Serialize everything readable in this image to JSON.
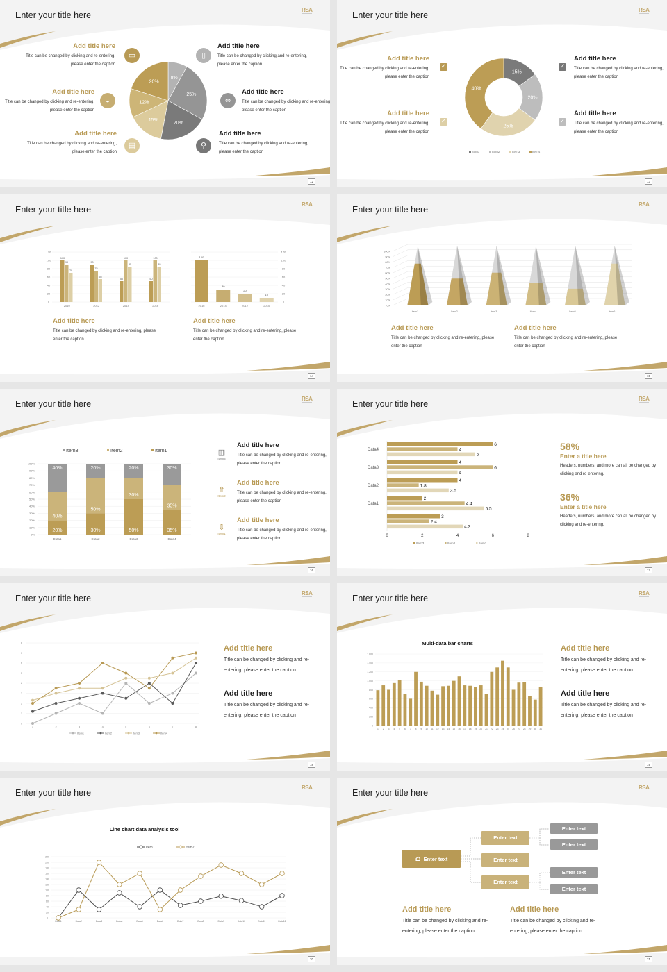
{
  "slides": [
    {
      "number": "12",
      "title": "Enter your title here",
      "items": [
        {
          "title": "Add title here",
          "caption": "Title can be changed by clicking and re-entering, please enter the caption",
          "icon": "monitor-icon"
        },
        {
          "title": "Add title here",
          "caption": "Title can be changed by clicking and re-entering, please enter the caption",
          "icon": "car-icon"
        },
        {
          "title": "Add title here",
          "caption": "Title can be changed by clicking and re-entering, please enter the caption",
          "icon": "book-icon"
        },
        {
          "title": "Add title here",
          "caption": "Title can be changed by clicking and re-entering, please enter the caption",
          "icon": "phone-icon"
        },
        {
          "title": "Add title here",
          "caption": "Title can be changed by clicking and re-entering, please enter the caption",
          "icon": "binoculars-icon"
        },
        {
          "title": "Add title here",
          "caption": "Title can be changed by clicking and re-entering, please enter the caption",
          "icon": "bicycle-icon"
        }
      ]
    },
    {
      "number": "13",
      "title": "Enter your title here",
      "items": [
        {
          "title": "Add title here",
          "caption": "Title can be changed by clicking and re-entering, please enter the caption"
        },
        {
          "title": "Add title here",
          "caption": "Title can be changed by clicking and re-entering, please enter the caption"
        },
        {
          "title": "Add title here",
          "caption": "Title can be changed by clicking and re-entering, please enter the caption"
        },
        {
          "title": "Add title here",
          "caption": "Title can be changed by clicking and re-entering, please enter the caption"
        }
      ],
      "check_glyph": "✓"
    },
    {
      "number": "14",
      "title": "Enter your title here",
      "items": [
        {
          "title": "Add title here",
          "caption": "Title can be changed by clicking and re-entering, please enter the caption"
        },
        {
          "title": "Add title here",
          "caption": "Title can be changed by clicking and re-entering, please enter the caption"
        }
      ]
    },
    {
      "number": "15",
      "title": "Enter your title here",
      "items": [
        {
          "title": "Add title here",
          "caption": "Title can be changed by clicking and re-entering, please enter the caption"
        },
        {
          "title": "Add title here",
          "caption": "Title can be changed by clicking and re-entering, please enter the caption"
        }
      ]
    },
    {
      "number": "16",
      "title": "Enter your title here",
      "items": [
        {
          "title": "Add title here",
          "caption": "Title can be changed by clicking and re-entering, please enter the caption",
          "icon_label": "Item3",
          "glyph": "▥"
        },
        {
          "title": "Add title here",
          "caption": "Title can be changed by clicking and re-entering, please enter the caption",
          "icon_label": "Item2",
          "glyph": "⇧"
        },
        {
          "title": "Add title here",
          "caption": "Title can be changed by clicking and re-entering, please enter the caption",
          "icon_label": "Item1",
          "glyph": "⇩"
        }
      ]
    },
    {
      "number": "17",
      "title": "Enter your title here",
      "stats": [
        {
          "value": "58%",
          "title": "Enter a title here",
          "caption": "Headers, numbers, and more can all be changed by clicking and re-entering."
        },
        {
          "value": "36%",
          "title": "Enter a title here",
          "caption": "Headers, numbers, and more can all be changed by clicking and re-entering."
        }
      ]
    },
    {
      "number": "18",
      "title": "Enter your title here",
      "items": [
        {
          "title": "Add title here",
          "caption": "Title can be changed by clicking and re-entering, please enter the caption"
        },
        {
          "title": "Add title here",
          "caption": "Title can be changed by clicking and re-entering, please enter the caption"
        }
      ]
    },
    {
      "number": "19",
      "title": "Enter your title here",
      "items": [
        {
          "title": "Add title here",
          "caption": "Title can be changed by clicking and re-entering, please enter the caption"
        },
        {
          "title": "Add title here",
          "caption": "Title can be changed by clicking and re-entering, please enter the caption"
        }
      ]
    },
    {
      "number": "20",
      "title": "Enter your title here"
    },
    {
      "number": "21",
      "title": "Enter your title here",
      "tree": {
        "root": "Enter text",
        "root_glyph": "⌂",
        "mid": [
          "Enter text",
          "Enter text",
          "Enter text"
        ],
        "leaves": [
          "Enter text",
          "Enter text",
          "Enter text",
          "Enter text"
        ]
      },
      "items": [
        {
          "title": "Add title here",
          "caption": "Title can be changed by clicking and re-entering, please enter the caption"
        },
        {
          "title": "Add title here",
          "caption": "Title can be changed by clicking and re-entering, please enter the caption"
        }
      ]
    }
  ],
  "logo_text": "RSA",
  "colors": {
    "gold": "#b89a55",
    "gold_mid": "#cbb47a",
    "gold_light": "#ddcfa6",
    "gray_dark": "#7b7b7b",
    "gray": "#969696",
    "gray_light": "#b9b9b9"
  },
  "chart_data": [
    {
      "type": "pie",
      "labels": [
        "8%",
        "25%",
        "20%",
        "15%",
        "12%",
        "20%"
      ],
      "values": [
        8,
        25,
        20,
        15,
        12,
        20
      ],
      "colors": [
        "#b3b3b3",
        "#959595",
        "#7a7a7a",
        "#dccb9c",
        "#cdb577",
        "#bc9d55"
      ]
    },
    {
      "type": "pie",
      "donut": true,
      "legend": [
        "Item1",
        "Item2",
        "Item3",
        "Item4"
      ],
      "values": [
        15,
        20,
        25,
        40
      ],
      "labels": [
        "15%",
        "20%",
        "25%",
        "40%"
      ],
      "colors": [
        "#7a7a7a",
        "#bdbdbd",
        "#e0d3ae",
        "#bc9d55"
      ],
      "legend_position": "bottom"
    },
    {
      "type": "bar",
      "categories": [
        "2010",
        "2012",
        "2014",
        "2016"
      ],
      "series": [
        {
          "values": [
            100,
            90,
            50,
            50
          ]
        },
        {
          "values": [
            90,
            75,
            100,
            100
          ]
        },
        {
          "values": [
            70,
            55,
            85,
            85
          ]
        }
      ],
      "ylim": [
        0,
        120
      ],
      "yticks": [
        0,
        20,
        40,
        60,
        80,
        100,
        120
      ],
      "colors": [
        "#bc9d55",
        "#cbb47a",
        "#ddcfa6"
      ]
    },
    {
      "type": "bar",
      "categories": [
        "2016",
        "2014",
        "2012",
        "2010"
      ],
      "values": [
        100,
        30,
        20,
        10
      ],
      "ylim": [
        0,
        120
      ],
      "yticks": [
        0,
        20,
        40,
        60,
        80,
        100,
        120
      ],
      "axis": "right",
      "colors": [
        "#bc9d55",
        "#c6ad71",
        "#d3c08f",
        "#e0d3ae"
      ]
    },
    {
      "type": "bar",
      "style": "3d-pyramid",
      "categories": [
        "Item1",
        "Item2",
        "Item3",
        "Item4",
        "Item5",
        "Item6"
      ],
      "values": [
        70,
        45,
        55,
        38,
        28,
        70
      ],
      "ylim": [
        0,
        100
      ],
      "yticks": [
        "0%",
        "10%",
        "20%",
        "30%",
        "40%",
        "50%",
        "60%",
        "70%",
        "80%",
        "90%",
        "100%"
      ]
    },
    {
      "type": "bar",
      "stacked": true,
      "categories": [
        "Data1",
        "Data2",
        "Data3",
        "Data4"
      ],
      "series": [
        {
          "name": "Item1",
          "values": [
            20,
            30,
            50,
            35
          ],
          "labels": [
            "20%",
            "30%",
            "50%",
            "35%"
          ]
        },
        {
          "name": "Item2",
          "values": [
            40,
            50,
            30,
            35
          ],
          "labels": [
            "40%",
            "50%",
            "30%",
            "35%"
          ]
        },
        {
          "name": "Item3",
          "values": [
            40,
            20,
            20,
            30
          ],
          "labels": [
            "40%",
            "20%",
            "20%",
            "30%"
          ]
        }
      ],
      "legend_order": [
        "Item3",
        "Item2",
        "Item1"
      ],
      "yticks": [
        "0%",
        "10%",
        "20%",
        "30%",
        "40%",
        "50%",
        "60%",
        "70%",
        "80%",
        "90%",
        "100%"
      ],
      "colors": [
        "#bc9d55",
        "#cbb47a",
        "#9a9a9a"
      ],
      "legend_position": "top"
    },
    {
      "type": "bar",
      "orientation": "horizontal",
      "categories": [
        "",
        "Data1",
        "Data2",
        "Data3",
        "Data4"
      ],
      "series": [
        {
          "name": "Item3",
          "values": [
            3,
            2,
            4,
            4,
            6
          ]
        },
        {
          "name": "Item2",
          "values": [
            2.4,
            4.4,
            1.8,
            6,
            4
          ]
        },
        {
          "name": "Item1",
          "values": [
            4.3,
            5.5,
            3.5,
            4,
            5
          ]
        }
      ],
      "xlim": [
        0,
        8
      ],
      "xticks": [
        0,
        2,
        4,
        6,
        8
      ],
      "colors": [
        "#bc9d55",
        "#cbb47a",
        "#e2d7b8"
      ],
      "legend_position": "bottom"
    },
    {
      "type": "line",
      "x": [
        "1",
        "2",
        "3",
        "4",
        "5",
        "6",
        "7",
        "8"
      ],
      "series": [
        {
          "name": "Item1",
          "values": [
            0,
            1,
            2,
            1,
            4,
            2,
            3,
            5
          ]
        },
        {
          "name": "Item2",
          "values": [
            1.2,
            2,
            2.5,
            3,
            2.5,
            4,
            2,
            6
          ]
        },
        {
          "name": "Item3",
          "values": [
            2.3,
            3,
            3.5,
            3.5,
            4.5,
            4.5,
            5,
            6.5
          ]
        },
        {
          "name": "Item4",
          "values": [
            2,
            3.5,
            4,
            6,
            5,
            3.5,
            6.5,
            7
          ]
        }
      ],
      "ylim": [
        0,
        8
      ],
      "yticks": [
        0,
        1,
        2,
        3,
        4,
        5,
        6,
        7,
        8
      ],
      "colors": [
        "#b5b5b5",
        "#5a5a5a",
        "#d5c396",
        "#b89a55"
      ],
      "legend_position": "bottom"
    },
    {
      "type": "bar",
      "title": "Multi-data bar charts",
      "categories": [
        "1",
        "2",
        "3",
        "4",
        "5",
        "6",
        "7",
        "8",
        "9",
        "10",
        "11",
        "12",
        "13",
        "14",
        "15",
        "16",
        "17",
        "18",
        "19",
        "20",
        "21",
        "22",
        "23",
        "24",
        "25",
        "26",
        "27",
        "28",
        "29",
        "30",
        "31"
      ],
      "values": [
        790,
        900,
        800,
        950,
        1020,
        700,
        600,
        1200,
        980,
        890,
        780,
        690,
        880,
        890,
        1000,
        1100,
        900,
        890,
        870,
        900,
        700,
        1200,
        1300,
        1450,
        1300,
        800,
        960,
        970,
        660,
        580,
        870
      ],
      "ylim": [
        0,
        1600
      ],
      "yticks": [
        "0",
        "200",
        "400",
        "600",
        "800",
        "1,000",
        "1,200",
        "1,400",
        "1,600"
      ],
      "colors": [
        "#bc9d55"
      ]
    },
    {
      "type": "line",
      "title": "Line chart data analysis tool",
      "x": [
        "Data1",
        "Data2",
        "Data3",
        "Data4",
        "Data5",
        "Data6",
        "Data7",
        "Data8",
        "Data9",
        "Data10",
        "Data11",
        "Data12"
      ],
      "series": [
        {
          "name": "Item1",
          "values": [
            0,
            100,
            30,
            90,
            40,
            100,
            45,
            60,
            78,
            62,
            40,
            80
          ]
        },
        {
          "name": "Item2",
          "values": [
            0,
            30,
            200,
            120,
            160,
            30,
            100,
            150,
            190,
            160,
            120,
            160
          ]
        }
      ],
      "ylim": [
        0,
        220
      ],
      "yticks": [
        0,
        20,
        40,
        60,
        80,
        100,
        120,
        140,
        160,
        180,
        200,
        220
      ],
      "colors": [
        "#4a4a4a",
        "#b89a55"
      ],
      "legend_position": "top"
    }
  ]
}
